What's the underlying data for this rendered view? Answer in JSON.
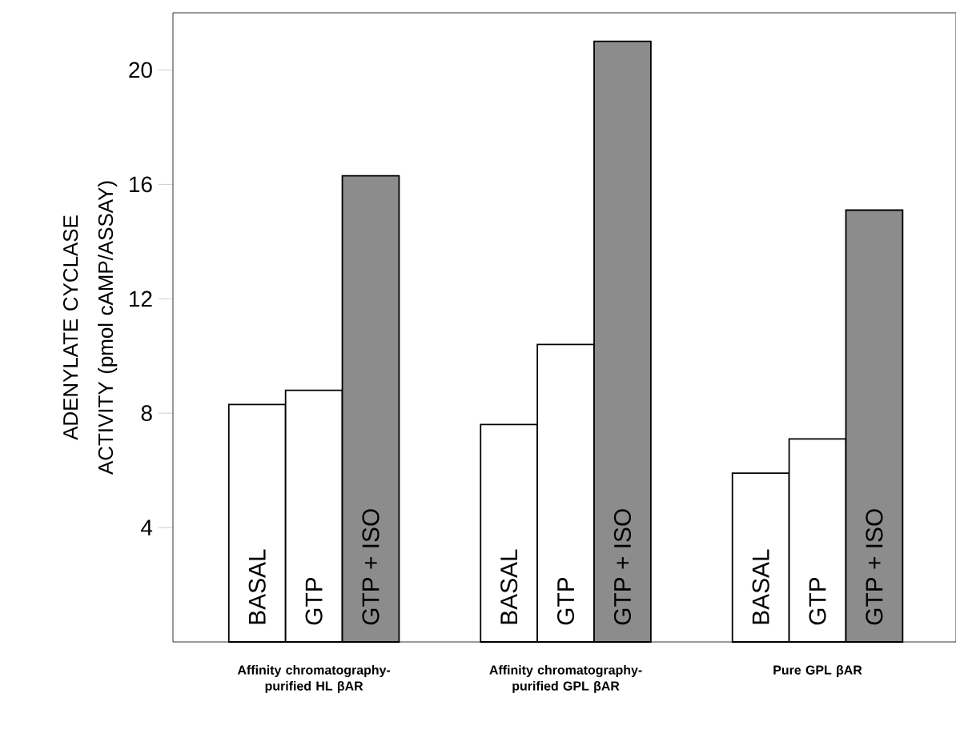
{
  "chart_data": {
    "type": "bar",
    "ylabel": "ADENYLATE CYCLASE ACTIVITY (pmol cAMP/ASSAY)",
    "categories": [
      "Affinity chromatography-purified HL βAR",
      "Affinity chromatography-purified GPL βAR",
      "Pure GPL βAR"
    ],
    "series": [
      {
        "name": "BASAL",
        "color": "#ffffff",
        "values": [
          8.3,
          7.6,
          5.9
        ]
      },
      {
        "name": "GTP",
        "color": "#ffffff",
        "values": [
          8.8,
          10.4,
          7.1
        ]
      },
      {
        "name": "GTP + ISO",
        "color": "#8c8c8c",
        "values": [
          16.3,
          21.0,
          15.1
        ]
      }
    ],
    "ylim": [
      0,
      22
    ],
    "yticks": [
      4,
      8,
      12,
      16,
      20
    ],
    "grid": false
  }
}
